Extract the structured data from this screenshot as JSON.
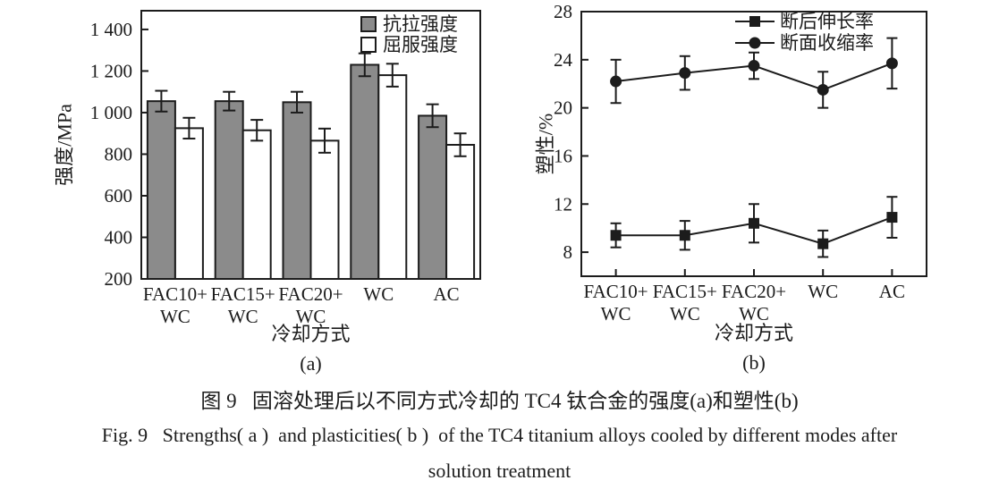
{
  "figure": {
    "caption_zh": "图 9   固溶处理后以不同方式冷却的 TC4 钛合金的强度(a)和塑性(b)",
    "caption_en_line1": "Fig. 9   Strengths( a )  and plasticities( b )  of the TC4 titanium alloys cooled by different modes after",
    "caption_en_line2": "solution treatment"
  },
  "colors": {
    "ink": "#1c1c1c",
    "bar_fill_gray": "#8b8b8b",
    "bar_fill_white": "#ffffff",
    "background": "#ffffff"
  },
  "chart_data": [
    {
      "id": "a",
      "type": "bar",
      "panel_label": "(a)",
      "xlabel": "冷却方式",
      "ylabel": "强度/MPa",
      "categories": [
        [
          "FAC10+",
          "WC"
        ],
        [
          "FAC15+",
          "WC"
        ],
        [
          "FAC20+",
          "WC"
        ],
        [
          "WC"
        ],
        [
          "AC"
        ]
      ],
      "ylim": [
        200,
        1490
      ],
      "yticks": [
        {
          "value": 200,
          "label": "200"
        },
        {
          "value": 400,
          "label": "400"
        },
        {
          "value": 600,
          "label": "600"
        },
        {
          "value": 800,
          "label": "800"
        },
        {
          "value": 1000,
          "label": "1 000"
        },
        {
          "value": 1200,
          "label": "1 200"
        },
        {
          "value": 1400,
          "label": "1 400"
        }
      ],
      "grid": false,
      "legend_position": "top-right",
      "series": [
        {
          "key": "tensile-strength",
          "name": "抗拉强度",
          "style": "filled",
          "values": [
            1055,
            1055,
            1050,
            1230,
            985
          ],
          "errors": [
            50,
            45,
            50,
            55,
            55
          ]
        },
        {
          "key": "yield-strength",
          "name": "屈服强度",
          "style": "open",
          "values": [
            925,
            915,
            865,
            1180,
            845
          ],
          "errors": [
            50,
            50,
            58,
            55,
            55
          ]
        }
      ]
    },
    {
      "id": "b",
      "type": "line",
      "panel_label": "(b)",
      "xlabel": "冷却方式",
      "ylabel": "塑性/%",
      "categories": [
        [
          "FAC10+",
          "WC"
        ],
        [
          "FAC15+",
          "WC"
        ],
        [
          "FAC20+",
          "WC"
        ],
        [
          "WC"
        ],
        [
          "AC"
        ]
      ],
      "ylim": [
        6,
        28
      ],
      "yticks": [
        {
          "value": 8,
          "label": "8"
        },
        {
          "value": 12,
          "label": "12"
        },
        {
          "value": 16,
          "label": "16"
        },
        {
          "value": 20,
          "label": "20"
        },
        {
          "value": 24,
          "label": "24"
        },
        {
          "value": 28,
          "label": "28"
        }
      ],
      "grid": false,
      "legend_position": "top-center",
      "series": [
        {
          "key": "elongation-after-fracture",
          "name": "断后伸长率",
          "marker": "square",
          "values": [
            9.4,
            9.4,
            10.4,
            8.7,
            10.9
          ],
          "errors": [
            1.0,
            1.2,
            1.6,
            1.1,
            1.7
          ]
        },
        {
          "key": "reduction-of-area",
          "name": "断面收缩率",
          "marker": "circle",
          "values": [
            22.2,
            22.9,
            23.5,
            21.5,
            23.7
          ],
          "errors": [
            1.8,
            1.4,
            1.1,
            1.5,
            2.1
          ]
        }
      ]
    }
  ]
}
